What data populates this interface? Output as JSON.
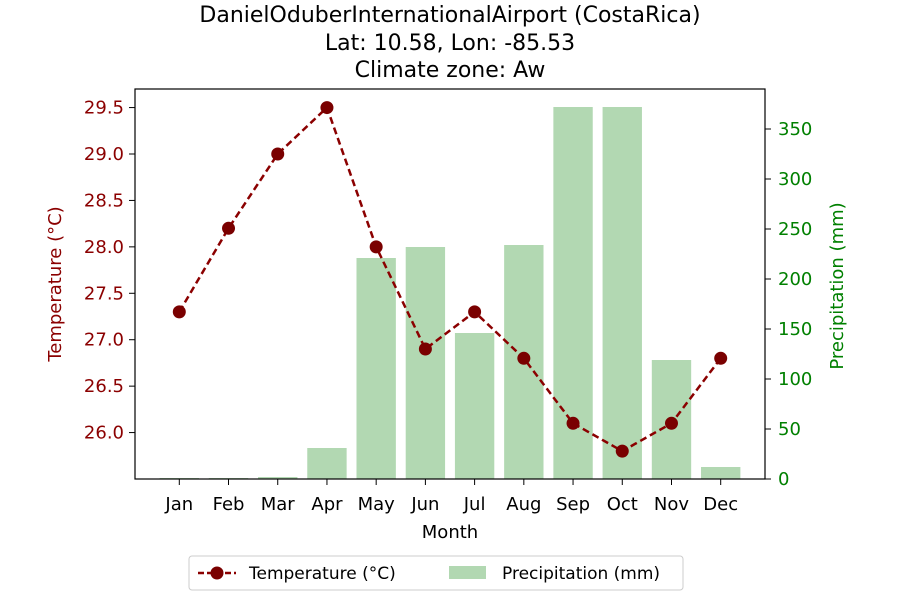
{
  "chart_data": {
    "type": "bar+line",
    "title_lines": [
      "DanielOduberInternationalAirport (CostaRica)",
      "Lat: 10.58, Lon: -85.53",
      "Climate zone: Aw"
    ],
    "categories": [
      "Jan",
      "Feb",
      "Mar",
      "Apr",
      "May",
      "Jun",
      "Jul",
      "Aug",
      "Sep",
      "Oct",
      "Nov",
      "Dec"
    ],
    "xlabel": "Month",
    "y_left": {
      "label": "Temperature (°C)",
      "lim": [
        25.5,
        29.7
      ],
      "ticks": [
        26.0,
        26.5,
        27.0,
        27.5,
        28.0,
        28.5,
        29.0,
        29.5
      ],
      "tick_labels": [
        "26.0",
        "26.5",
        "27.0",
        "27.5",
        "28.0",
        "28.5",
        "29.0",
        "29.5"
      ],
      "color": "#8b0000"
    },
    "y_right": {
      "label": "Precipitation (mm)",
      "lim": [
        0,
        390
      ],
      "ticks": [
        0,
        50,
        100,
        150,
        200,
        250,
        300,
        350
      ],
      "tick_labels": [
        "0",
        "50",
        "100",
        "150",
        "200",
        "250",
        "300",
        "350"
      ],
      "color": "#008000"
    },
    "series": [
      {
        "name": "Temperature (°C)",
        "kind": "line",
        "axis": "left",
        "style": "dashed-with-circle-markers",
        "color": "#8b0000",
        "values": [
          27.3,
          28.2,
          29.0,
          29.5,
          28.0,
          26.9,
          27.3,
          26.8,
          26.1,
          25.8,
          26.1,
          26.8
        ]
      },
      {
        "name": "Precipitation (mm)",
        "kind": "bar",
        "axis": "right",
        "color": "#b2d8b2",
        "values": [
          1,
          1,
          2,
          31,
          221,
          232,
          146,
          234,
          372,
          372,
          119,
          12
        ]
      }
    ],
    "legend_position": "bottom-center",
    "grid": false
  }
}
